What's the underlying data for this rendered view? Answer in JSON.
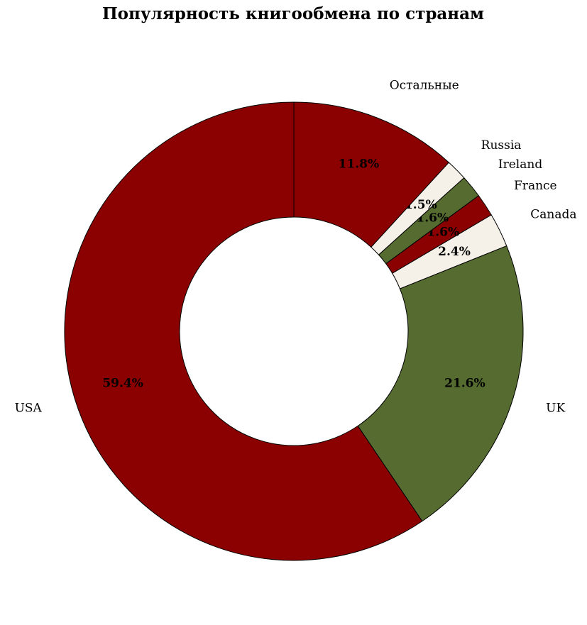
{
  "chart_data": {
    "type": "donut",
    "title": "Популярность книгообмена по странам",
    "categories": [
      "USA",
      "UK",
      "Canada",
      "France",
      "Ireland",
      "Russia",
      "Остальные"
    ],
    "values": [
      59.4,
      21.6,
      2.4,
      1.6,
      1.6,
      1.5,
      11.8
    ],
    "value_labels": [
      "59.4%",
      "21.6%",
      "2.4%",
      "1.6%",
      "1.6%",
      "1.5%",
      "11.8%"
    ],
    "colors": [
      "#8b0000",
      "#556b2f",
      "#f5f0e8",
      "#8b0000",
      "#556b2f",
      "#f5f0e8",
      "#8b0000"
    ]
  }
}
